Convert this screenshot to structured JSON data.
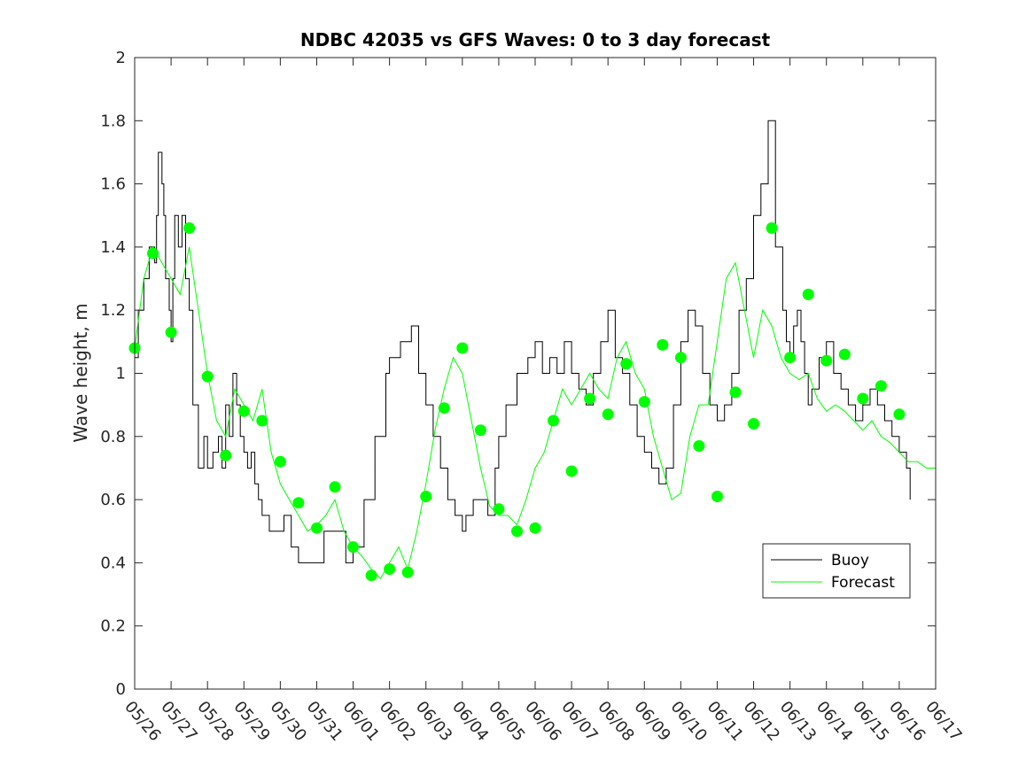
{
  "chart_data": {
    "type": "line",
    "title": "NDBC 42035 vs GFS Waves: 0 to 3 day forecast",
    "xlabel": "",
    "ylabel": "Wave height, m",
    "ylim": [
      0,
      2
    ],
    "yticks": [
      "0",
      "0.2",
      "0.4",
      "0.6",
      "0.8",
      "1",
      "1.2",
      "1.4",
      "1.6",
      "1.8",
      "2"
    ],
    "xlim": [
      0,
      22
    ],
    "xticks": [
      "05/26",
      "05/27",
      "05/28",
      "05/29",
      "05/30",
      "05/31",
      "06/01",
      "06/02",
      "06/03",
      "06/04",
      "06/05",
      "06/06",
      "06/07",
      "06/08",
      "06/09",
      "06/10",
      "06/11",
      "06/12",
      "06/13",
      "06/14",
      "06/15",
      "06/16",
      "06/17"
    ],
    "grid": false,
    "legend": {
      "location": "bottom-right",
      "entries": [
        "Buoy",
        "Forecast"
      ]
    },
    "colors": {
      "buoy": "#000000",
      "forecast": "#00ff00",
      "axes": "#262626"
    },
    "series": [
      {
        "name": "Buoy",
        "style": "stairs",
        "x": [
          0,
          0.1,
          0.25,
          0.4,
          0.55,
          0.6,
          0.65,
          0.75,
          0.8,
          0.85,
          0.95,
          1.0,
          1.05,
          1.1,
          1.2,
          1.3,
          1.4,
          1.5,
          1.6,
          1.75,
          1.9,
          2.0,
          2.05,
          2.15,
          2.3,
          2.4,
          2.5,
          2.6,
          2.7,
          2.8,
          2.9,
          3.0,
          3.1,
          3.2,
          3.3,
          3.4,
          3.5,
          3.7,
          3.9,
          4.1,
          4.3,
          4.5,
          4.7,
          4.9,
          5.0,
          5.2,
          5.4,
          5.6,
          5.8,
          6.0,
          6.3,
          6.6,
          6.9,
          7.0,
          7.3,
          7.6,
          7.8,
          8.0,
          8.2,
          8.4,
          8.6,
          8.8,
          9.0,
          9.1,
          9.3,
          9.5,
          9.7,
          9.9,
          10.0,
          10.2,
          10.5,
          10.8,
          11.0,
          11.2,
          11.4,
          11.6,
          11.8,
          12.0,
          12.2,
          12.4,
          12.6,
          12.8,
          13.0,
          13.2,
          13.4,
          13.6,
          13.8,
          14.0,
          14.2,
          14.4,
          14.6,
          14.8,
          15.0,
          15.2,
          15.4,
          15.6,
          15.8,
          16.0,
          16.2,
          16.4,
          16.6,
          16.8,
          17.0,
          17.2,
          17.4,
          17.6,
          17.8,
          17.9,
          18.0,
          18.1,
          18.2,
          18.3,
          18.4,
          18.5,
          18.6,
          18.8,
          19.0,
          19.2,
          19.4,
          19.6,
          19.8,
          20.0,
          20.2,
          20.4,
          20.6,
          20.8,
          21.0,
          21.2,
          21.3
        ],
        "values": [
          1.05,
          1.2,
          1.3,
          1.4,
          1.35,
          1.5,
          1.7,
          1.6,
          1.5,
          1.3,
          1.2,
          1.1,
          1.3,
          1.5,
          1.4,
          1.5,
          1.3,
          1.2,
          0.9,
          0.7,
          0.8,
          0.7,
          0.7,
          0.75,
          0.8,
          0.7,
          0.9,
          0.8,
          1.0,
          0.9,
          0.8,
          0.75,
          0.7,
          0.75,
          0.65,
          0.6,
          0.55,
          0.5,
          0.5,
          0.55,
          0.45,
          0.4,
          0.4,
          0.4,
          0.4,
          0.5,
          0.5,
          0.5,
          0.4,
          0.45,
          0.6,
          0.8,
          1.0,
          1.05,
          1.1,
          1.15,
          1.0,
          0.9,
          0.8,
          0.7,
          0.6,
          0.55,
          0.5,
          0.55,
          0.6,
          0.6,
          0.55,
          0.7,
          0.8,
          0.9,
          1.0,
          1.05,
          1.1,
          1.0,
          1.05,
          1.0,
          1.1,
          1.0,
          0.95,
          0.9,
          1.0,
          1.1,
          1.2,
          1.05,
          1.0,
          0.9,
          0.8,
          0.75,
          0.7,
          0.65,
          0.7,
          0.9,
          1.1,
          1.2,
          1.15,
          1.0,
          0.9,
          0.85,
          0.9,
          1.0,
          1.2,
          1.3,
          1.5,
          1.6,
          1.8,
          1.4,
          1.2,
          1.1,
          1.05,
          1.15,
          1.2,
          1.1,
          1.0,
          0.9,
          0.95,
          1.05,
          1.1,
          1.0,
          0.95,
          0.9,
          0.85,
          0.9,
          0.95,
          0.9,
          0.85,
          0.8,
          0.75,
          0.7,
          0.6
        ]
      },
      {
        "name": "Forecast",
        "style": "lines",
        "x": [
          0,
          0.25,
          0.5,
          0.75,
          1.0,
          1.25,
          1.5,
          1.75,
          2.0,
          2.25,
          2.5,
          2.75,
          3.0,
          3.25,
          3.5,
          3.75,
          4.0,
          4.25,
          4.5,
          4.75,
          5.0,
          5.25,
          5.5,
          5.75,
          6.0,
          6.25,
          6.5,
          6.75,
          7.0,
          7.25,
          7.5,
          7.75,
          8.0,
          8.25,
          8.5,
          8.75,
          9.0,
          9.25,
          9.5,
          9.75,
          10.0,
          10.25,
          10.5,
          10.75,
          11.0,
          11.25,
          11.5,
          11.75,
          12.0,
          12.25,
          12.5,
          12.75,
          13.0,
          13.25,
          13.5,
          13.75,
          14.0,
          14.25,
          14.5,
          14.75,
          15.0,
          15.25,
          15.5,
          15.75,
          16.0,
          16.25,
          16.5,
          16.75,
          17.0,
          17.25,
          17.5,
          17.75,
          18.0,
          18.25,
          18.5,
          18.75,
          19.0,
          19.25,
          19.5,
          19.75,
          20.0,
          20.25,
          20.5,
          20.75,
          21.0,
          21.25,
          21.5,
          21.75,
          22.0
        ],
        "values": [
          1.08,
          1.3,
          1.4,
          1.35,
          1.3,
          1.25,
          1.4,
          1.2,
          1.0,
          0.85,
          0.8,
          0.95,
          0.9,
          0.85,
          0.95,
          0.75,
          0.65,
          0.6,
          0.55,
          0.5,
          0.52,
          0.55,
          0.6,
          0.5,
          0.45,
          0.42,
          0.38,
          0.35,
          0.4,
          0.45,
          0.38,
          0.5,
          0.65,
          0.82,
          0.95,
          1.05,
          1.0,
          0.85,
          0.7,
          0.58,
          0.55,
          0.55,
          0.52,
          0.6,
          0.7,
          0.75,
          0.85,
          0.95,
          0.9,
          0.95,
          1.0,
          0.95,
          0.92,
          1.05,
          1.1,
          1.0,
          0.95,
          0.8,
          0.7,
          0.6,
          0.62,
          0.8,
          0.9,
          0.9,
          1.1,
          1.3,
          1.35,
          1.2,
          1.05,
          1.2,
          1.15,
          1.05,
          1.0,
          0.98,
          1.0,
          0.92,
          0.88,
          0.9,
          0.88,
          0.85,
          0.82,
          0.85,
          0.8,
          0.78,
          0.75,
          0.72,
          0.72,
          0.7,
          0.7
        ]
      },
      {
        "name": "Forecast",
        "style": "markers",
        "x": [
          0,
          0.5,
          1.0,
          1.5,
          2.0,
          2.5,
          3.0,
          3.5,
          4.0,
          4.5,
          5.0,
          5.5,
          6.0,
          6.5,
          7.0,
          7.5,
          8.0,
          8.5,
          9.0,
          9.5,
          10.0,
          10.5,
          11.0,
          11.5,
          12.0,
          12.5,
          13.0,
          13.5,
          14.0,
          14.5,
          15.0,
          15.5,
          16.0,
          16.5,
          17.0,
          17.5,
          18.0,
          18.5,
          19.0,
          19.5,
          20.0,
          20.5,
          21.0
        ],
        "values": [
          1.08,
          1.38,
          1.13,
          1.46,
          0.99,
          0.74,
          0.88,
          0.85,
          0.72,
          0.59,
          0.51,
          0.64,
          0.45,
          0.36,
          0.38,
          0.37,
          0.61,
          0.89,
          1.08,
          0.82,
          0.57,
          0.5,
          0.51,
          0.85,
          0.69,
          0.92,
          0.87,
          1.03,
          0.91,
          1.09,
          1.05,
          0.77,
          0.61,
          0.94,
          0.84,
          1.46,
          1.05,
          1.25,
          1.04,
          1.06,
          0.92,
          0.96,
          0.87
        ]
      }
    ]
  }
}
